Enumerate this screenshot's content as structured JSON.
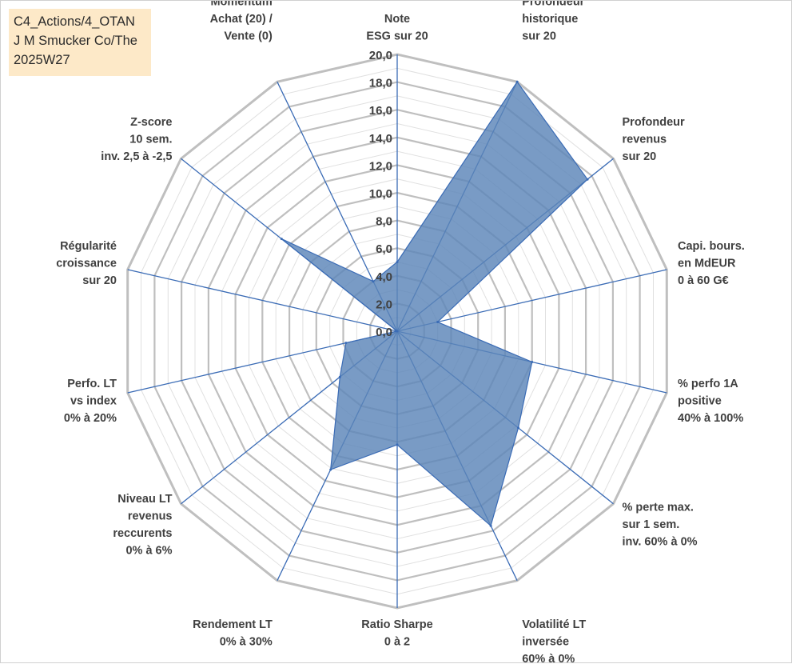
{
  "title_lines": [
    "C4_Actions/4_OTAN",
    "J M Smucker Co/The",
    "2025W27"
  ],
  "chart_data": {
    "type": "radar",
    "title": "C4_Actions/4_OTAN J M Smucker Co/The 2025W27",
    "rlim": [
      0,
      20
    ],
    "r_ticks": [
      "0,0",
      "2,0",
      "4,0",
      "6,0",
      "8,0",
      "10,0",
      "12,0",
      "14,0",
      "16,0",
      "18,0",
      "20,0"
    ],
    "grid": true,
    "colors": {
      "fill": "#5b85b8",
      "grid": "#bfbfbf",
      "spoke": "#3a6bb5"
    },
    "axes": [
      {
        "label": [
          "Note",
          "ESG sur 20"
        ],
        "value": 5
      },
      {
        "label": [
          "Profondeur",
          "historique",
          "sur 20"
        ],
        "value": 20
      },
      {
        "label": [
          "Profondeur",
          "revenus",
          "sur 20"
        ],
        "value": 17.6
      },
      {
        "label": [
          "Capi. bours.",
          "en MdEUR",
          "0 à 60 G€"
        ],
        "value": 3
      },
      {
        "label": [
          "% perfo 1A",
          "positive",
          "40% à 100%"
        ],
        "value": 10
      },
      {
        "label": [
          "% perte max.",
          "sur 1 sem.",
          "inv. 60% à 0%"
        ],
        "value": 11.2
      },
      {
        "label": [
          "Volatilité LT",
          "inversée",
          "60% à 0%"
        ],
        "value": 15.6
      },
      {
        "label": [
          "Ratio Sharpe",
          "0 à 2"
        ],
        "value": 8.2
      },
      {
        "label": [
          "Rendement LT",
          "0% à 30%"
        ],
        "value": 11.1
      },
      {
        "label": [
          "Niveau LT",
          "revenus",
          "reccurents",
          "0% à 6%"
        ],
        "value": 5.3
      },
      {
        "label": [
          "Perfo. LT",
          "vs index",
          "0% à 20%"
        ],
        "value": 3.8
      },
      {
        "label": [
          "Régularité",
          "croissance",
          "sur 20"
        ],
        "value": 0
      },
      {
        "label": [
          "Z-score",
          "10 sem.",
          "inv. 2,5 à -2,5"
        ],
        "value": 10.7
      },
      {
        "label": [
          "Momentum",
          "Achat (20) /",
          "Vente (0)"
        ],
        "value": 4
      }
    ]
  }
}
